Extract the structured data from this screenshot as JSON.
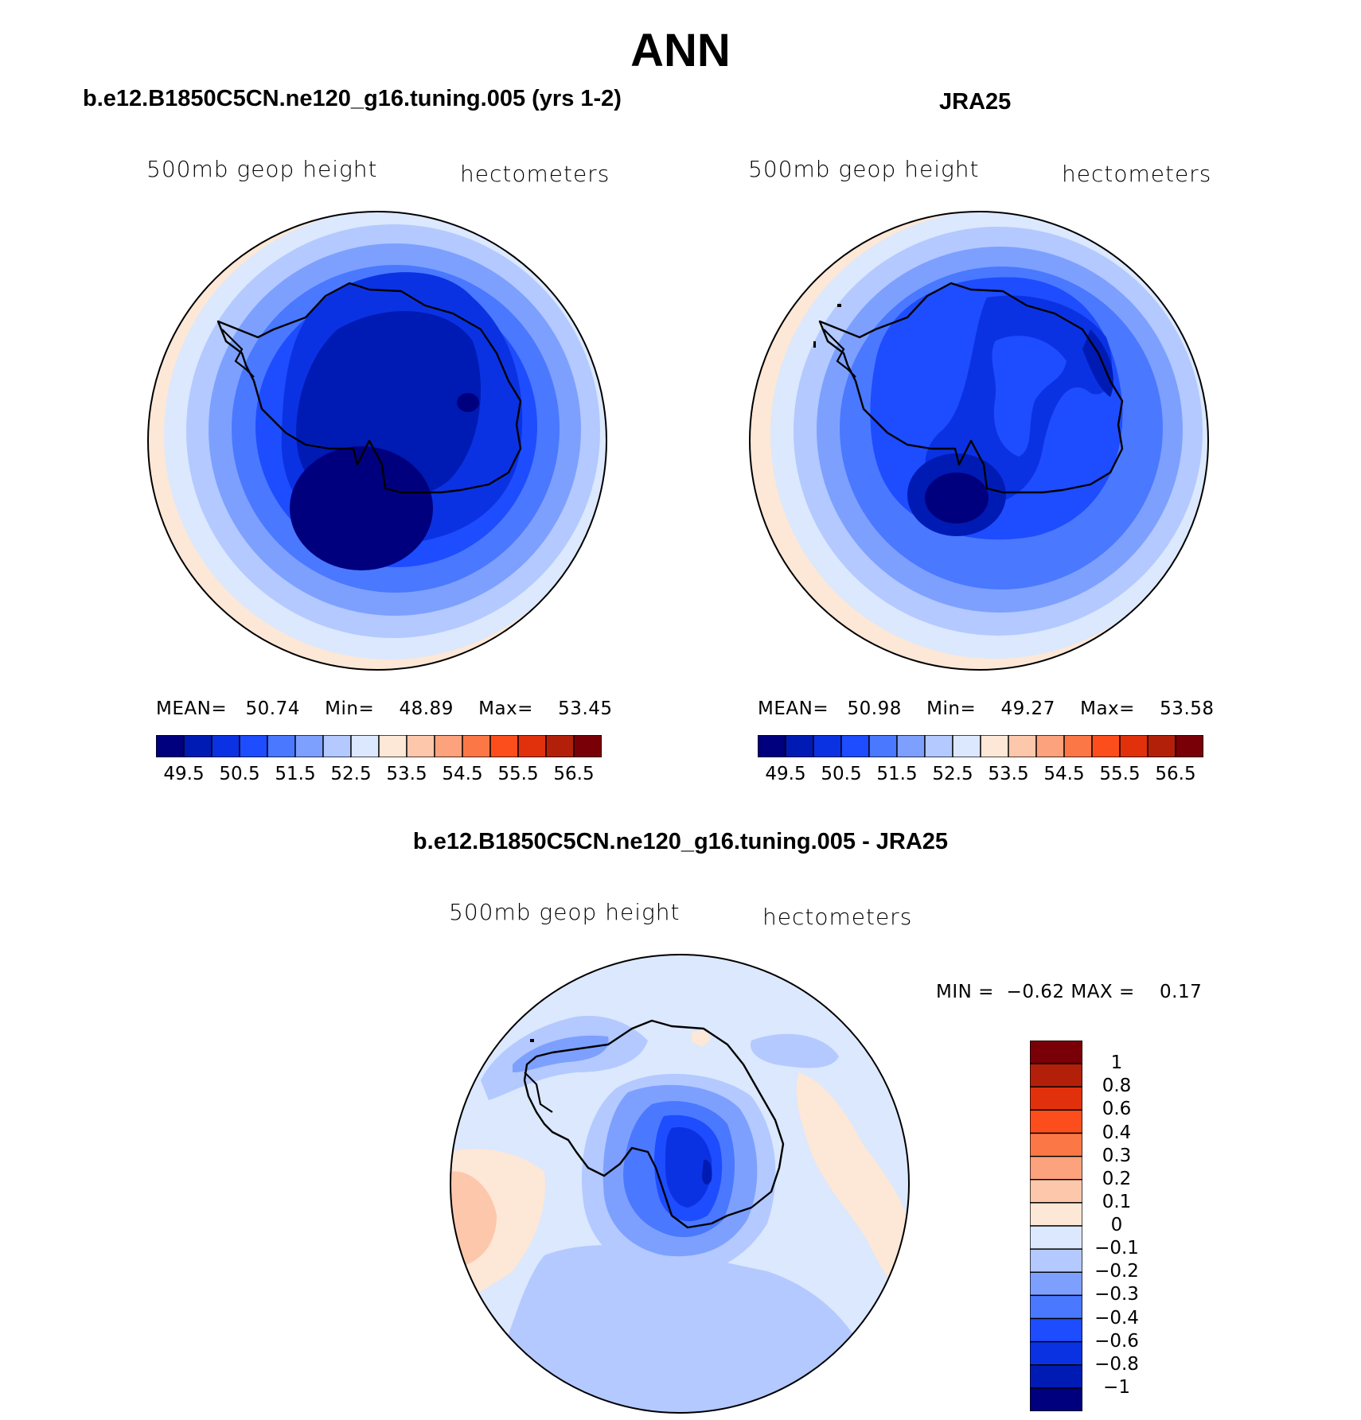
{
  "title": "ANN",
  "panels": [
    {
      "id": "model",
      "title": "b.e12.B1850C5CN.ne120_g16.tuning.005 (yrs 1-2)",
      "variable": "500mb geop height",
      "units": "hectometers",
      "stats": {
        "mean_label": "MEAN=",
        "mean": "50.74",
        "min_label": "Min=",
        "min": "48.89",
        "max_label": "Max=",
        "max": "53.45"
      }
    },
    {
      "id": "obs",
      "title": "JRA25",
      "variable": "500mb geop height",
      "units": "hectometers",
      "stats": {
        "mean_label": "MEAN=",
        "mean": "50.98",
        "min_label": "Min=",
        "min": "49.27",
        "max_label": "Max=",
        "max": "53.58"
      }
    }
  ],
  "difference": {
    "title": "b.e12.B1850C5CN.ne120_g16.tuning.005 - JRA25",
    "variable": "500mb geop height",
    "units": "hectometers",
    "stats": {
      "min_label": "MIN =",
      "min": "−0.62",
      "max_label": "MAX =",
      "max": "0.17"
    },
    "colorbar_levels": [
      "1",
      "0.8",
      "0.6",
      "0.4",
      "0.3",
      "0.2",
      "0.1",
      "0",
      "−0.1",
      "−0.2",
      "−0.3",
      "−0.4",
      "−0.6",
      "−0.8",
      "−1"
    ]
  },
  "colorbar_ticks": [
    "49.5",
    "50.5",
    "51.5",
    "52.5",
    "53.5",
    "54.5",
    "55.5",
    "56.5"
  ],
  "palette": [
    "#00007f",
    "#001bb4",
    "#0b32e2",
    "#1e4cff",
    "#4a78ff",
    "#7da0ff",
    "#b3c9ff",
    "#dbe8fd",
    "#fde7d6",
    "#fdc7ac",
    "#fca27c",
    "#fb7846",
    "#fc4e1c",
    "#e1310c",
    "#b3200a",
    "#7a0008"
  ],
  "diff_palette": [
    "#00007f",
    "#001bb4",
    "#0b32e2",
    "#1e4cff",
    "#4a78ff",
    "#7da0ff",
    "#b3c9ff",
    "#dbe8fd",
    "#fde7d6",
    "#fdc7ac",
    "#fca27c",
    "#fb7846",
    "#fc4e1c",
    "#e1310c",
    "#b3200a",
    "#7a0008"
  ],
  "colorbar_ticks_note": ""
}
